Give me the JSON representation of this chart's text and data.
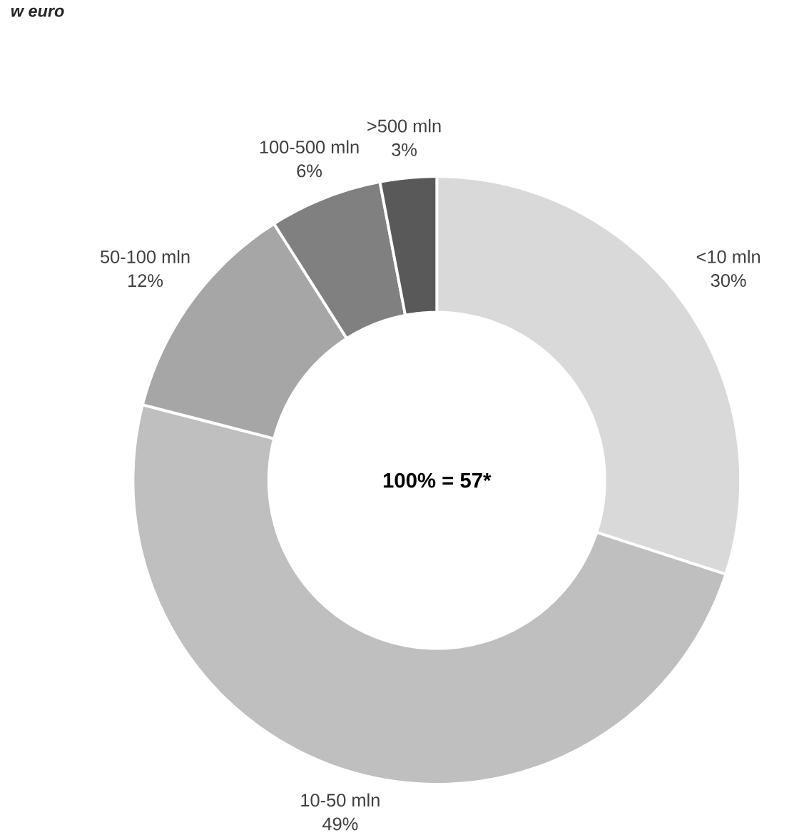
{
  "chart_data": {
    "type": "donut",
    "title": "w euro",
    "categories": [
      "<10 mln",
      "10-50 mln",
      "50-100 mln",
      "100-500 mln",
      ">500 mln"
    ],
    "values": [
      30,
      49,
      12,
      6,
      3
    ],
    "value_labels": [
      "30%",
      "49%",
      "12%",
      "6%",
      "3%"
    ],
    "colors": [
      "#d9d9d9",
      "#bfbfbf",
      "#a6a6a6",
      "#808080",
      "#595959"
    ],
    "annotations": [
      "100% = 57*"
    ]
  }
}
